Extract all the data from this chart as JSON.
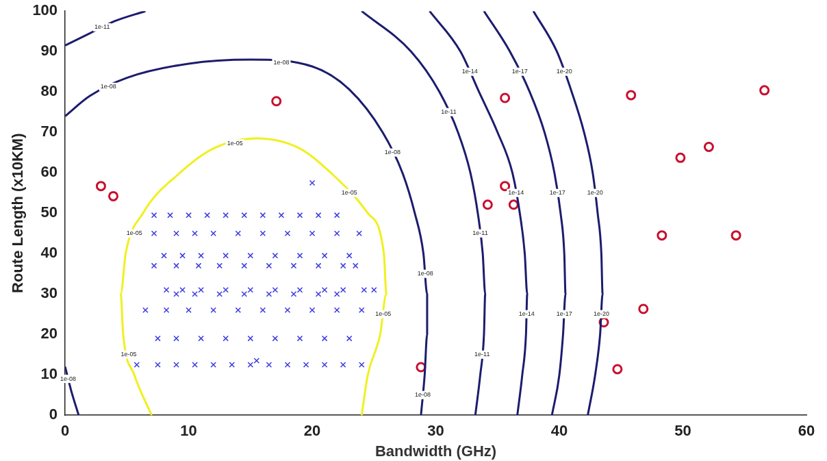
{
  "chart_data": {
    "type": "scatter",
    "xlabel": "Bandwidth (GHz)",
    "ylabel": "Route Length (x10KM)",
    "xlim": [
      0,
      60
    ],
    "ylim": [
      0,
      100
    ],
    "xticks": [
      0,
      10,
      20,
      30,
      40,
      50,
      60
    ],
    "yticks": [
      0,
      10,
      20,
      30,
      40,
      50,
      60,
      70,
      80,
      90,
      100
    ],
    "grid": false,
    "legend": false,
    "series": [
      {
        "name": "1e-05",
        "type": "line",
        "marker": "none",
        "color": "#f0f020",
        "x": [
          7.0,
          5.6,
          4.7,
          4.5,
          4.9,
          6.3,
          9.3,
          12,
          15.5,
          19,
          21.5,
          24.5,
          25.8,
          26.0,
          25.5,
          24.5,
          24.0
        ],
        "values": [
          0,
          10,
          20,
          30,
          40,
          50,
          60,
          66,
          68.5,
          66,
          60,
          50,
          40,
          30,
          20,
          10,
          0
        ]
      },
      {
        "name": "1e-08",
        "type": "line",
        "marker": "none",
        "color": "#1c1c6e",
        "x": [
          0,
          2,
          5,
          10,
          15,
          20,
          23,
          25.7,
          27.3,
          28.3,
          29,
          29.3,
          29.3,
          29.1,
          28.8,
          0.5,
          0,
          0.5,
          1.1
        ],
        "values": [
          74,
          79,
          83.5,
          87,
          88,
          86.3,
          80.6,
          70,
          60,
          50,
          40,
          30,
          20,
          10,
          0,
          null,
          12,
          6,
          0
        ]
      },
      {
        "name": "1e-11",
        "type": "line",
        "marker": "none",
        "color": "#1c1c6e",
        "x": [
          0,
          2,
          4,
          6.5,
          15,
          24,
          28,
          30.3,
          31.8,
          32.8,
          33.4,
          33.8,
          34,
          33.9,
          33.6,
          33.2
        ],
        "values": [
          91.5,
          94.5,
          97.5,
          100,
          null,
          100,
          90,
          80,
          70,
          60,
          50,
          40,
          30,
          20,
          10,
          0
        ]
      },
      {
        "name": "1e-14",
        "type": "line",
        "marker": "none",
        "color": "#1c1c6e",
        "x": [
          29.5,
          32,
          33.5,
          35,
          36.2,
          36.8,
          37.2,
          37.4,
          37.3,
          37,
          36.6
        ],
        "values": [
          100,
          90,
          80,
          70,
          60,
          50,
          40,
          30,
          20,
          10,
          0
        ]
      },
      {
        "name": "1e-17",
        "type": "line",
        "marker": "none",
        "color": "#1c1c6e",
        "x": [
          33.9,
          36,
          37.6,
          38.8,
          39.6,
          40.1,
          40.4,
          40.5,
          40.3,
          40,
          39.4
        ],
        "values": [
          100,
          90,
          80,
          70,
          60,
          50,
          40,
          30,
          20,
          10,
          0
        ]
      },
      {
        "name": "1e-20",
        "type": "line",
        "marker": "none",
        "color": "#1c1c6e",
        "x": [
          37.9,
          39.8,
          41,
          42,
          42.7,
          43.1,
          43.4,
          43.5,
          43.3,
          42.9,
          42.3
        ],
        "values": [
          100,
          90,
          80,
          70,
          60,
          50,
          40,
          30,
          20,
          10,
          0
        ]
      },
      {
        "type": "scatter",
        "marker": "cross",
        "color": "#3a3ae0",
        "x": [
          7.2,
          8.5,
          10,
          11.5,
          13,
          14.5,
          16,
          17.5,
          19,
          20.5,
          22,
          7.2,
          9,
          10.5,
          12,
          14,
          16,
          18,
          20,
          22,
          23.8,
          8,
          9.5,
          11,
          13,
          15,
          17,
          19,
          21,
          23,
          7.2,
          9,
          10.8,
          12.5,
          14.5,
          16.5,
          18.5,
          20.5,
          22.5,
          23.5,
          8.2,
          9.5,
          11,
          13,
          15,
          17,
          19,
          21,
          22.5,
          24.2,
          9,
          10.5,
          12.5,
          14.5,
          16.5,
          18.5,
          20.5,
          22,
          6.5,
          8.2,
          10,
          12,
          14,
          16,
          18,
          20,
          22,
          24,
          7.5,
          9,
          11,
          13,
          15,
          17,
          19,
          21,
          23,
          5.8,
          7.5,
          9,
          10.5,
          12,
          13.5,
          15,
          16.5,
          18,
          19.5,
          21,
          22.5,
          24,
          20,
          25,
          15.5
        ],
        "values": [
          49.5,
          49.5,
          49.5,
          49.5,
          49.5,
          49.5,
          49.5,
          49.5,
          49.5,
          49.5,
          49.5,
          45,
          45,
          45,
          45,
          45,
          45,
          45,
          45,
          45,
          45,
          39.5,
          39.5,
          39.5,
          39.5,
          39.5,
          39.5,
          39.5,
          39.5,
          39.5,
          37,
          37,
          37,
          37,
          37,
          37,
          37,
          37,
          37,
          37,
          31,
          31,
          31,
          31,
          31,
          31,
          31,
          31,
          31,
          31,
          30,
          30,
          30,
          30,
          30,
          30,
          30,
          30,
          26,
          26,
          26,
          26,
          26,
          26,
          26,
          26,
          26,
          26,
          19,
          19,
          19,
          19,
          19,
          19,
          19,
          19,
          19,
          12.5,
          12.5,
          12.5,
          12.5,
          12.5,
          12.5,
          12.5,
          12.5,
          12.5,
          12.5,
          12.5,
          12.5,
          12.5,
          57.5,
          31,
          13.5
        ]
      },
      {
        "type": "scatter",
        "marker": "circle",
        "color": "#c8102e",
        "x": [
          2.9,
          3.9,
          17.1,
          28.8,
          34.2,
          35.6,
          35.6,
          36.3,
          43.6,
          44.7,
          45.8,
          46.8,
          48.3,
          49.8,
          52.1,
          54.3,
          56.6
        ],
        "values": [
          56.7,
          54.2,
          77.7,
          11.9,
          52.1,
          78.5,
          56.7,
          52.1,
          23,
          11.4,
          79.2,
          26.3,
          44.5,
          63.7,
          66.4,
          44.5,
          80.4
        ]
      }
    ]
  }
}
